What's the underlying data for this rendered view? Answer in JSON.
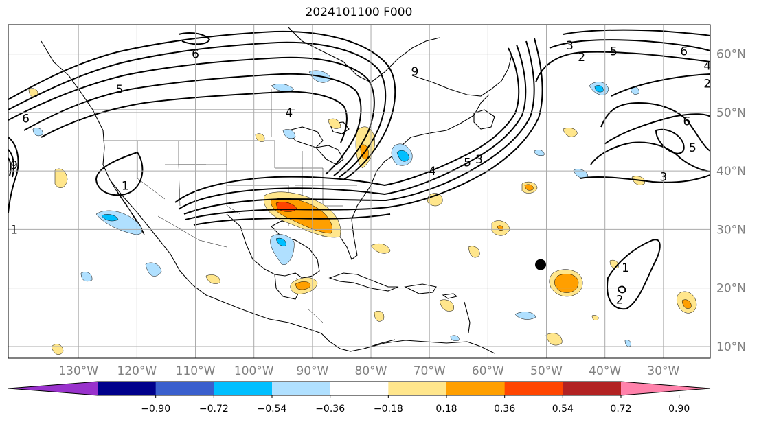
{
  "title": "2024101100 F000",
  "map": {
    "lon_range": [
      -142,
      -22
    ],
    "lat_range": [
      8,
      65
    ],
    "lon_ticks": [
      {
        "value": -130,
        "label": "130°W"
      },
      {
        "value": -120,
        "label": "120°W"
      },
      {
        "value": -110,
        "label": "110°W"
      },
      {
        "value": -100,
        "label": "100°W"
      },
      {
        "value": -90,
        "label": "90°W"
      },
      {
        "value": -80,
        "label": "80°W"
      },
      {
        "value": -70,
        "label": "70°W"
      },
      {
        "value": -60,
        "label": "60°W"
      },
      {
        "value": -50,
        "label": "50°W"
      },
      {
        "value": -40,
        "label": "40°W"
      },
      {
        "value": -30,
        "label": "30°W"
      }
    ],
    "lat_ticks": [
      {
        "value": 60,
        "label": "60°N"
      },
      {
        "value": 50,
        "label": "50°N"
      },
      {
        "value": 40,
        "label": "40°N"
      },
      {
        "value": 30,
        "label": "30°N"
      },
      {
        "value": 20,
        "label": "20°N"
      },
      {
        "value": 10,
        "label": "10°N"
      }
    ],
    "marker": {
      "lon": -51,
      "lat": 24
    },
    "contour_labels": [
      {
        "text": "6",
        "lon": -110,
        "lat": 60
      },
      {
        "text": "5",
        "lon": -123,
        "lat": 54
      },
      {
        "text": "6",
        "lon": -139,
        "lat": 49
      },
      {
        "text": "4",
        "lon": -94,
        "lat": 50
      },
      {
        "text": "9",
        "lon": -72.5,
        "lat": 57
      },
      {
        "text": "3",
        "lon": -46,
        "lat": 61.5
      },
      {
        "text": "2",
        "lon": -44,
        "lat": 59.5
      },
      {
        "text": "5",
        "lon": -38.5,
        "lat": 60.5
      },
      {
        "text": "6",
        "lon": -26.5,
        "lat": 60.5
      },
      {
        "text": "4",
        "lon": -22.5,
        "lat": 58
      },
      {
        "text": "2",
        "lon": -22.5,
        "lat": 55
      },
      {
        "text": "6",
        "lon": -26,
        "lat": 48.5
      },
      {
        "text": "5",
        "lon": -25,
        "lat": 44
      },
      {
        "text": "3",
        "lon": -30,
        "lat": 39
      },
      {
        "text": "4",
        "lon": -69.5,
        "lat": 40
      },
      {
        "text": "5",
        "lon": -63.5,
        "lat": 41.5
      },
      {
        "text": "3",
        "lon": -61.5,
        "lat": 42
      },
      {
        "text": "1",
        "lon": -122,
        "lat": 37.5
      },
      {
        "text": "1",
        "lon": -141,
        "lat": 30
      },
      {
        "text": "9",
        "lon": -141,
        "lat": 41
      },
      {
        "text": "1",
        "lon": -36.5,
        "lat": 23.5
      },
      {
        "text": "2",
        "lon": -37.5,
        "lat": 18
      }
    ]
  },
  "colorbar": {
    "colors": [
      "#9932cc",
      "#00008b",
      "#3a5fcd",
      "#00bfff",
      "#b0e0ff",
      "#ffffff",
      "#ffe68c",
      "#ff9f00",
      "#ff4500",
      "#b22222",
      "#ff82ab"
    ],
    "labels": [
      "−0.90",
      "−0.72",
      "−0.54",
      "−0.36",
      "−0.18",
      "0.18",
      "0.36",
      "0.54",
      "0.72",
      "0.90"
    ]
  }
}
